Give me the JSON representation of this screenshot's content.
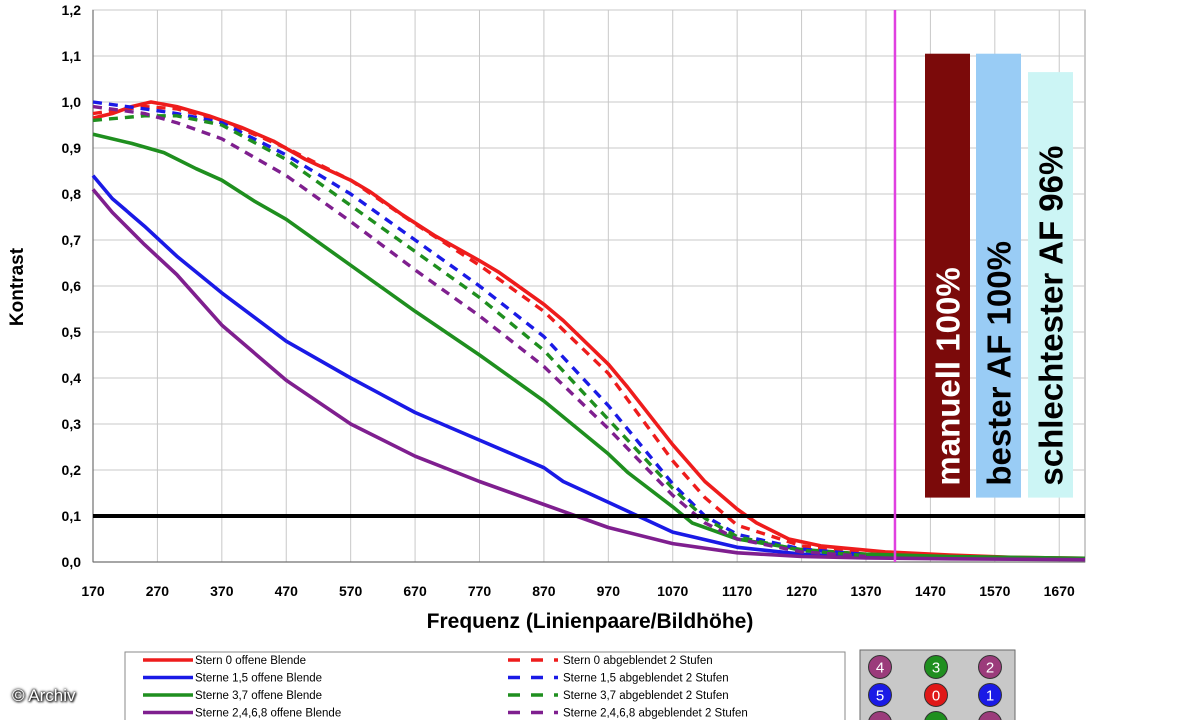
{
  "chart_data": {
    "type": "line",
    "xlabel": "Frequenz (Linienpaare/Bildhöhe)",
    "ylabel": "Kontrast",
    "xlim": [
      170,
      1710
    ],
    "ylim": [
      0,
      1.2
    ],
    "x_ticks": [
      "170",
      "270",
      "370",
      "470",
      "570",
      "670",
      "770",
      "870",
      "970",
      "1070",
      "1170",
      "1270",
      "1370",
      "1470",
      "1570",
      "1670"
    ],
    "y_ticks": [
      "0,0",
      "0,1",
      "0,2",
      "0,3",
      "0,4",
      "0,5",
      "0,6",
      "0,7",
      "0,8",
      "0,9",
      "1,0",
      "1,1",
      "1,2"
    ],
    "grid": true,
    "threshold": 0.1,
    "marker_x": 1415,
    "colors": {
      "red": "#ee1c1c",
      "blue": "#1a1ae6",
      "green": "#1f8f1f",
      "purple": "#7f1f8f",
      "marker": "#e040e0"
    },
    "series": [
      {
        "name": "Stern 0 offene Blende",
        "color": "#ee1c1c",
        "dashed": false,
        "points": [
          [
            170,
            0.965
          ],
          [
            200,
            0.975
          ],
          [
            230,
            0.99
          ],
          [
            260,
            1.0
          ],
          [
            300,
            0.99
          ],
          [
            350,
            0.97
          ],
          [
            400,
            0.945
          ],
          [
            450,
            0.915
          ],
          [
            500,
            0.875
          ],
          [
            570,
            0.83
          ],
          [
            600,
            0.805
          ],
          [
            650,
            0.755
          ],
          [
            700,
            0.71
          ],
          [
            770,
            0.655
          ],
          [
            800,
            0.63
          ],
          [
            870,
            0.56
          ],
          [
            900,
            0.525
          ],
          [
            970,
            0.43
          ],
          [
            1000,
            0.38
          ],
          [
            1070,
            0.255
          ],
          [
            1120,
            0.175
          ],
          [
            1170,
            0.115
          ],
          [
            1200,
            0.085
          ],
          [
            1250,
            0.05
          ],
          [
            1300,
            0.035
          ],
          [
            1400,
            0.022
          ],
          [
            1500,
            0.015
          ],
          [
            1600,
            0.01
          ],
          [
            1710,
            0.008
          ]
        ]
      },
      {
        "name": "Sterne 1,5 offene Blende",
        "color": "#1a1ae6",
        "dashed": false,
        "points": [
          [
            170,
            0.84
          ],
          [
            200,
            0.79
          ],
          [
            250,
            0.73
          ],
          [
            300,
            0.665
          ],
          [
            370,
            0.585
          ],
          [
            470,
            0.48
          ],
          [
            570,
            0.4
          ],
          [
            670,
            0.325
          ],
          [
            770,
            0.265
          ],
          [
            870,
            0.205
          ],
          [
            900,
            0.175
          ],
          [
            970,
            0.13
          ],
          [
            1070,
            0.065
          ],
          [
            1170,
            0.032
          ],
          [
            1270,
            0.017
          ],
          [
            1370,
            0.011
          ],
          [
            1500,
            0.008
          ],
          [
            1710,
            0.006
          ]
        ]
      },
      {
        "name": "Sterne 3,7 offene Blende",
        "color": "#1f8f1f",
        "dashed": false,
        "points": [
          [
            170,
            0.93
          ],
          [
            230,
            0.91
          ],
          [
            280,
            0.89
          ],
          [
            330,
            0.855
          ],
          [
            370,
            0.83
          ],
          [
            420,
            0.785
          ],
          [
            470,
            0.745
          ],
          [
            570,
            0.645
          ],
          [
            670,
            0.545
          ],
          [
            770,
            0.45
          ],
          [
            870,
            0.35
          ],
          [
            970,
            0.235
          ],
          [
            1000,
            0.195
          ],
          [
            1070,
            0.12
          ],
          [
            1100,
            0.085
          ],
          [
            1170,
            0.05
          ],
          [
            1270,
            0.027
          ],
          [
            1370,
            0.017
          ],
          [
            1500,
            0.012
          ],
          [
            1710,
            0.008
          ]
        ]
      },
      {
        "name": "Sterne 2,4,6,8 offene Blende",
        "color": "#7f1f8f",
        "dashed": false,
        "points": [
          [
            170,
            0.81
          ],
          [
            200,
            0.76
          ],
          [
            250,
            0.69
          ],
          [
            300,
            0.625
          ],
          [
            370,
            0.515
          ],
          [
            470,
            0.395
          ],
          [
            570,
            0.3
          ],
          [
            670,
            0.23
          ],
          [
            770,
            0.175
          ],
          [
            870,
            0.125
          ],
          [
            970,
            0.075
          ],
          [
            1070,
            0.04
          ],
          [
            1170,
            0.02
          ],
          [
            1270,
            0.012
          ],
          [
            1370,
            0.009
          ],
          [
            1500,
            0.007
          ],
          [
            1710,
            0.005
          ]
        ]
      },
      {
        "name": "Stern 0 abgeblendet 2 Stufen",
        "color": "#ee1c1c",
        "dashed": true,
        "points": [
          [
            170,
            0.975
          ],
          [
            250,
            0.99
          ],
          [
            300,
            0.985
          ],
          [
            370,
            0.96
          ],
          [
            470,
            0.9
          ],
          [
            570,
            0.83
          ],
          [
            670,
            0.735
          ],
          [
            770,
            0.645
          ],
          [
            870,
            0.545
          ],
          [
            970,
            0.41
          ],
          [
            1070,
            0.22
          ],
          [
            1120,
            0.14
          ],
          [
            1170,
            0.08
          ],
          [
            1270,
            0.035
          ],
          [
            1370,
            0.02
          ]
        ]
      },
      {
        "name": "Sterne 1,5 abgeblendet 2 Stufen",
        "color": "#1a1ae6",
        "dashed": true,
        "points": [
          [
            170,
            1.0
          ],
          [
            250,
            0.985
          ],
          [
            300,
            0.975
          ],
          [
            370,
            0.955
          ],
          [
            470,
            0.885
          ],
          [
            570,
            0.8
          ],
          [
            670,
            0.7
          ],
          [
            770,
            0.6
          ],
          [
            870,
            0.49
          ],
          [
            970,
            0.34
          ],
          [
            1070,
            0.17
          ],
          [
            1120,
            0.1
          ],
          [
            1170,
            0.06
          ],
          [
            1270,
            0.028
          ],
          [
            1370,
            0.016
          ]
        ]
      },
      {
        "name": "Sterne 3,7 abgeblendet 2 Stufen",
        "color": "#1f8f1f",
        "dashed": true,
        "points": [
          [
            170,
            0.96
          ],
          [
            250,
            0.97
          ],
          [
            300,
            0.97
          ],
          [
            370,
            0.95
          ],
          [
            470,
            0.875
          ],
          [
            570,
            0.775
          ],
          [
            670,
            0.675
          ],
          [
            770,
            0.575
          ],
          [
            870,
            0.46
          ],
          [
            970,
            0.31
          ],
          [
            1070,
            0.16
          ],
          [
            1120,
            0.095
          ],
          [
            1170,
            0.055
          ],
          [
            1270,
            0.025
          ],
          [
            1370,
            0.014
          ]
        ]
      },
      {
        "name": "Sterne 2,4,6,8 abgeblendet 2 Stufen",
        "color": "#7f1f8f",
        "dashed": true,
        "points": [
          [
            170,
            0.99
          ],
          [
            250,
            0.975
          ],
          [
            300,
            0.955
          ],
          [
            370,
            0.92
          ],
          [
            470,
            0.84
          ],
          [
            570,
            0.74
          ],
          [
            670,
            0.635
          ],
          [
            770,
            0.535
          ],
          [
            870,
            0.425
          ],
          [
            970,
            0.29
          ],
          [
            1070,
            0.145
          ],
          [
            1120,
            0.085
          ],
          [
            1170,
            0.05
          ],
          [
            1270,
            0.022
          ],
          [
            1370,
            0.012
          ]
        ]
      }
    ],
    "bars": [
      {
        "label": "manuell 100%",
        "value": 1.105,
        "fill": "#7b0a0a",
        "text_color": "#ffffff"
      },
      {
        "label": "bester AF 100%",
        "value": 1.105,
        "fill": "#99ccf5",
        "text_color": "#000000"
      },
      {
        "label": "schlechtester AF 96%",
        "value": 1.065,
        "fill": "#ccf5f5",
        "text_color": "#000000"
      }
    ],
    "legend": {
      "placement": "bottom",
      "entries": [
        "Stern 0 offene Blende",
        "Sterne 1,5 offene Blende",
        "Sterne 3,7 offene Blende",
        "Sterne 2,4,6,8 offene Blende",
        "Stern 0 abgeblendet 2 Stufen",
        "Sterne 1,5 abgeblendet 2 Stufen",
        "Sterne 3,7 abgeblendet 2 Stufen",
        "Sterne 2,4,6,8 abgeblendet 2 Stufen"
      ]
    },
    "star_badges": [
      {
        "label": "4",
        "color": "#9b3b7b"
      },
      {
        "label": "3",
        "color": "#1f8f1f"
      },
      {
        "label": "2",
        "color": "#9b3b7b"
      },
      {
        "label": "5",
        "color": "#1a1ae6"
      },
      {
        "label": "0",
        "color": "#e01818"
      },
      {
        "label": "1",
        "color": "#1a1ae6"
      },
      {
        "label": "",
        "color": "#9b3b7b"
      },
      {
        "label": "",
        "color": "#1f8f1f"
      },
      {
        "label": "",
        "color": "#9b3b7b"
      }
    ]
  },
  "credit": "© Archiv"
}
